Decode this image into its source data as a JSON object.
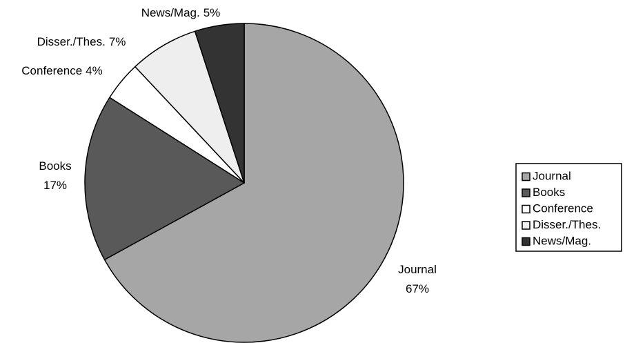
{
  "chart_data": {
    "type": "pie",
    "categories": [
      "Journal",
      "Books",
      "Conference",
      "Disser./Thes.",
      "News/Mag."
    ],
    "values": [
      67,
      17,
      4,
      7,
      5
    ],
    "value_labels": [
      "67%",
      "17%",
      "4%",
      "7%",
      "5%"
    ],
    "colors": [
      "#a6a6a6",
      "#595959",
      "#ffffff",
      "#eeeeee",
      "#333333"
    ],
    "legend": "right"
  }
}
